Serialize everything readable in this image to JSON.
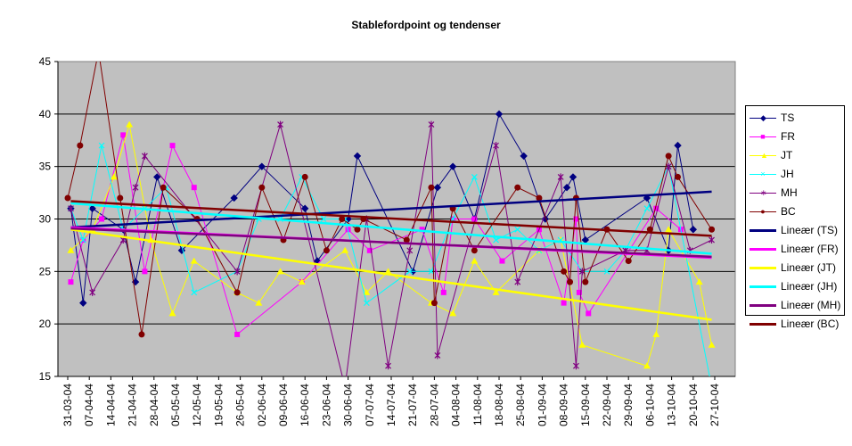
{
  "chart_data": {
    "type": "line",
    "title": "Stablefordpoint og tendenser",
    "xlabel": "",
    "ylabel": "",
    "ylim": [
      15,
      45
    ],
    "y_ticks": [
      "15",
      "20",
      "25",
      "30",
      "35",
      "40",
      "45"
    ],
    "x_range": [
      "2004-03-31",
      "2004-10-27"
    ],
    "x_ticks": [
      "31-03-04",
      "07-04-04",
      "14-04-04",
      "21-04-04",
      "28-04-04",
      "05-05-04",
      "12-05-04",
      "19-05-04",
      "26-05-04",
      "02-06-04",
      "09-06-04",
      "16-06-04",
      "23-06-04",
      "30-06-04",
      "07-07-04",
      "14-07-04",
      "21-07-04",
      "28-07-04",
      "04-08-04",
      "11-08-04",
      "18-08-04",
      "25-08-04",
      "01-09-04",
      "08-09-04",
      "15-09-04",
      "22-09-04",
      "29-09-04",
      "06-10-04",
      "13-10-04",
      "20-10-04",
      "27-10-04"
    ],
    "grid": true,
    "plot_background": "#c0c0c0",
    "legend_position": "right",
    "series": [
      {
        "name": "TS",
        "color": "#000080",
        "marker": "diamond",
        "points": [
          [
            "2004-04-01",
            31
          ],
          [
            "2004-04-05",
            22
          ],
          [
            "2004-04-08",
            31
          ],
          [
            "2004-04-18",
            29
          ],
          [
            "2004-04-22",
            24
          ],
          [
            "2004-04-29",
            34
          ],
          [
            "2004-05-07",
            27
          ],
          [
            "2004-05-24",
            32
          ],
          [
            "2004-06-02",
            35
          ],
          [
            "2004-06-16",
            31
          ],
          [
            "2004-06-20",
            26
          ],
          [
            "2004-06-30",
            30
          ],
          [
            "2004-07-03",
            36
          ],
          [
            "2004-07-21",
            25
          ],
          [
            "2004-07-29",
            33
          ],
          [
            "2004-08-03",
            35
          ],
          [
            "2004-08-10",
            30
          ],
          [
            "2004-08-18",
            40
          ],
          [
            "2004-08-26",
            36
          ],
          [
            "2004-09-02",
            30
          ],
          [
            "2004-09-09",
            33
          ],
          [
            "2004-09-11",
            34
          ],
          [
            "2004-09-15",
            28
          ],
          [
            "2004-10-05",
            32
          ],
          [
            "2004-10-12",
            27
          ],
          [
            "2004-10-15",
            37
          ],
          [
            "2004-10-20",
            29
          ]
        ]
      },
      {
        "name": "FR",
        "color": "#ff00ff",
        "marker": "square",
        "points": [
          [
            "2004-04-01",
            24
          ],
          [
            "2004-04-05",
            28
          ],
          [
            "2004-04-11",
            30
          ],
          [
            "2004-04-18",
            38
          ],
          [
            "2004-04-25",
            25
          ],
          [
            "2004-05-04",
            37
          ],
          [
            "2004-05-11",
            33
          ],
          [
            "2004-05-25",
            19
          ],
          [
            "2004-06-15",
            24
          ],
          [
            "2004-06-30",
            29
          ],
          [
            "2004-07-07",
            27
          ],
          [
            "2004-07-24",
            29
          ],
          [
            "2004-07-31",
            23
          ],
          [
            "2004-08-03",
            30
          ],
          [
            "2004-08-10",
            30
          ],
          [
            "2004-08-19",
            26
          ],
          [
            "2004-08-31",
            29
          ],
          [
            "2004-09-08",
            22
          ],
          [
            "2004-09-12",
            30
          ],
          [
            "2004-09-13",
            23
          ],
          [
            "2004-09-16",
            21
          ],
          [
            "2004-10-08",
            31
          ],
          [
            "2004-10-16",
            29
          ]
        ]
      },
      {
        "name": "JT",
        "color": "#ffff00",
        "marker": "triangle",
        "points": [
          [
            "2004-04-01",
            27
          ],
          [
            "2004-04-08",
            29
          ],
          [
            "2004-04-15",
            34
          ],
          [
            "2004-04-20",
            39
          ],
          [
            "2004-04-27",
            28
          ],
          [
            "2004-05-04",
            21
          ],
          [
            "2004-05-11",
            26
          ],
          [
            "2004-05-25",
            23
          ],
          [
            "2004-06-01",
            22
          ],
          [
            "2004-06-08",
            25
          ],
          [
            "2004-06-15",
            24
          ],
          [
            "2004-06-29",
            27
          ],
          [
            "2004-07-06",
            23
          ],
          [
            "2004-07-13",
            25
          ],
          [
            "2004-07-27",
            22
          ],
          [
            "2004-08-03",
            21
          ],
          [
            "2004-08-10",
            26
          ],
          [
            "2004-08-17",
            23
          ],
          [
            "2004-08-31",
            27
          ],
          [
            "2004-09-07",
            28
          ],
          [
            "2004-09-14",
            18
          ],
          [
            "2004-10-05",
            16
          ],
          [
            "2004-10-08",
            19
          ],
          [
            "2004-10-12",
            29
          ],
          [
            "2004-10-22",
            24
          ],
          [
            "2004-10-26",
            18
          ]
        ]
      },
      {
        "name": "JH",
        "color": "#00ffff",
        "marker": "x",
        "points": [
          [
            "2004-04-01",
            31
          ],
          [
            "2004-04-05",
            28
          ],
          [
            "2004-04-11",
            37
          ],
          [
            "2004-04-18",
            29
          ],
          [
            "2004-04-25",
            31
          ],
          [
            "2004-05-02",
            33
          ],
          [
            "2004-05-11",
            23
          ],
          [
            "2004-05-25",
            25
          ],
          [
            "2004-06-01",
            30
          ],
          [
            "2004-06-08",
            30
          ],
          [
            "2004-06-15",
            34
          ],
          [
            "2004-06-22",
            30
          ],
          [
            "2004-06-29",
            30
          ],
          [
            "2004-07-06",
            22
          ],
          [
            "2004-07-20",
            25
          ],
          [
            "2004-07-27",
            25
          ],
          [
            "2004-08-03",
            30
          ],
          [
            "2004-08-10",
            34
          ],
          [
            "2004-08-17",
            28
          ],
          [
            "2004-08-24",
            29
          ],
          [
            "2004-08-31",
            27
          ],
          [
            "2004-09-07",
            28
          ],
          [
            "2004-09-14",
            25
          ],
          [
            "2004-09-22",
            25
          ],
          [
            "2004-09-28",
            27
          ],
          [
            "2004-10-05",
            31
          ],
          [
            "2004-10-12",
            35
          ],
          [
            "2004-10-26",
            14
          ]
        ]
      },
      {
        "name": "MH",
        "color": "#800080",
        "marker": "star",
        "points": [
          [
            "2004-04-01",
            31
          ],
          [
            "2004-04-08",
            23
          ],
          [
            "2004-04-18",
            28
          ],
          [
            "2004-04-22",
            33
          ],
          [
            "2004-04-25",
            36
          ],
          [
            "2004-05-25",
            25
          ],
          [
            "2004-06-08",
            39
          ],
          [
            "2004-06-29",
            14
          ],
          [
            "2004-07-06",
            30
          ],
          [
            "2004-07-13",
            16
          ],
          [
            "2004-07-20",
            27
          ],
          [
            "2004-07-27",
            39
          ],
          [
            "2004-07-29",
            17
          ],
          [
            "2004-08-17",
            37
          ],
          [
            "2004-08-24",
            24
          ],
          [
            "2004-09-07",
            34
          ],
          [
            "2004-09-12",
            16
          ],
          [
            "2004-09-14",
            25
          ],
          [
            "2004-09-28",
            27
          ],
          [
            "2004-10-05",
            27
          ],
          [
            "2004-10-12",
            35
          ],
          [
            "2004-10-19",
            27
          ],
          [
            "2004-10-26",
            28
          ]
        ]
      },
      {
        "name": "BC",
        "color": "#800000",
        "marker": "circle",
        "points": [
          [
            "2004-03-31",
            32
          ],
          [
            "2004-04-04",
            37
          ],
          [
            "2004-04-10",
            46
          ],
          [
            "2004-04-17",
            32
          ],
          [
            "2004-04-24",
            19
          ],
          [
            "2004-05-01",
            33
          ],
          [
            "2004-05-12",
            30
          ],
          [
            "2004-05-25",
            23
          ],
          [
            "2004-06-02",
            33
          ],
          [
            "2004-06-09",
            28
          ],
          [
            "2004-06-16",
            34
          ],
          [
            "2004-06-23",
            27
          ],
          [
            "2004-06-28",
            30
          ],
          [
            "2004-07-03",
            29
          ],
          [
            "2004-07-05",
            30
          ],
          [
            "2004-07-19",
            28
          ],
          [
            "2004-07-27",
            33
          ],
          [
            "2004-07-28",
            22
          ],
          [
            "2004-08-03",
            31
          ],
          [
            "2004-08-10",
            27
          ],
          [
            "2004-08-24",
            33
          ],
          [
            "2004-08-31",
            32
          ],
          [
            "2004-09-08",
            25
          ],
          [
            "2004-09-10",
            24
          ],
          [
            "2004-09-12",
            32
          ],
          [
            "2004-09-15",
            24
          ],
          [
            "2004-09-22",
            29
          ],
          [
            "2004-09-29",
            26
          ],
          [
            "2004-10-06",
            29
          ],
          [
            "2004-10-12",
            36
          ],
          [
            "2004-10-15",
            34
          ],
          [
            "2004-10-26",
            29
          ]
        ]
      }
    ],
    "trendlines": [
      {
        "name": "Lineær (TS)",
        "color": "#000080",
        "start": [
          "2004-04-01",
          29.2
        ],
        "end": [
          "2004-10-26",
          32.6
        ]
      },
      {
        "name": "Lineær (FR)",
        "color": "#ff00ff",
        "start": [
          "2004-04-01",
          29.2
        ],
        "end": [
          "2004-10-26",
          26.3
        ]
      },
      {
        "name": "Lineær (JT)",
        "color": "#ffff00",
        "start": [
          "2004-04-01",
          29.0
        ],
        "end": [
          "2004-10-26",
          20.4
        ]
      },
      {
        "name": "Lineær (JH)",
        "color": "#00ffff",
        "start": [
          "2004-04-01",
          31.5
        ],
        "end": [
          "2004-10-26",
          26.7
        ]
      },
      {
        "name": "Lineær (MH)",
        "color": "#800080",
        "start": [
          "2004-04-01",
          29.1
        ],
        "end": [
          "2004-10-26",
          26.4
        ]
      },
      {
        "name": "Lineær (BC)",
        "color": "#800000",
        "start": [
          "2004-04-01",
          31.7
        ],
        "end": [
          "2004-10-26",
          28.4
        ]
      }
    ]
  }
}
